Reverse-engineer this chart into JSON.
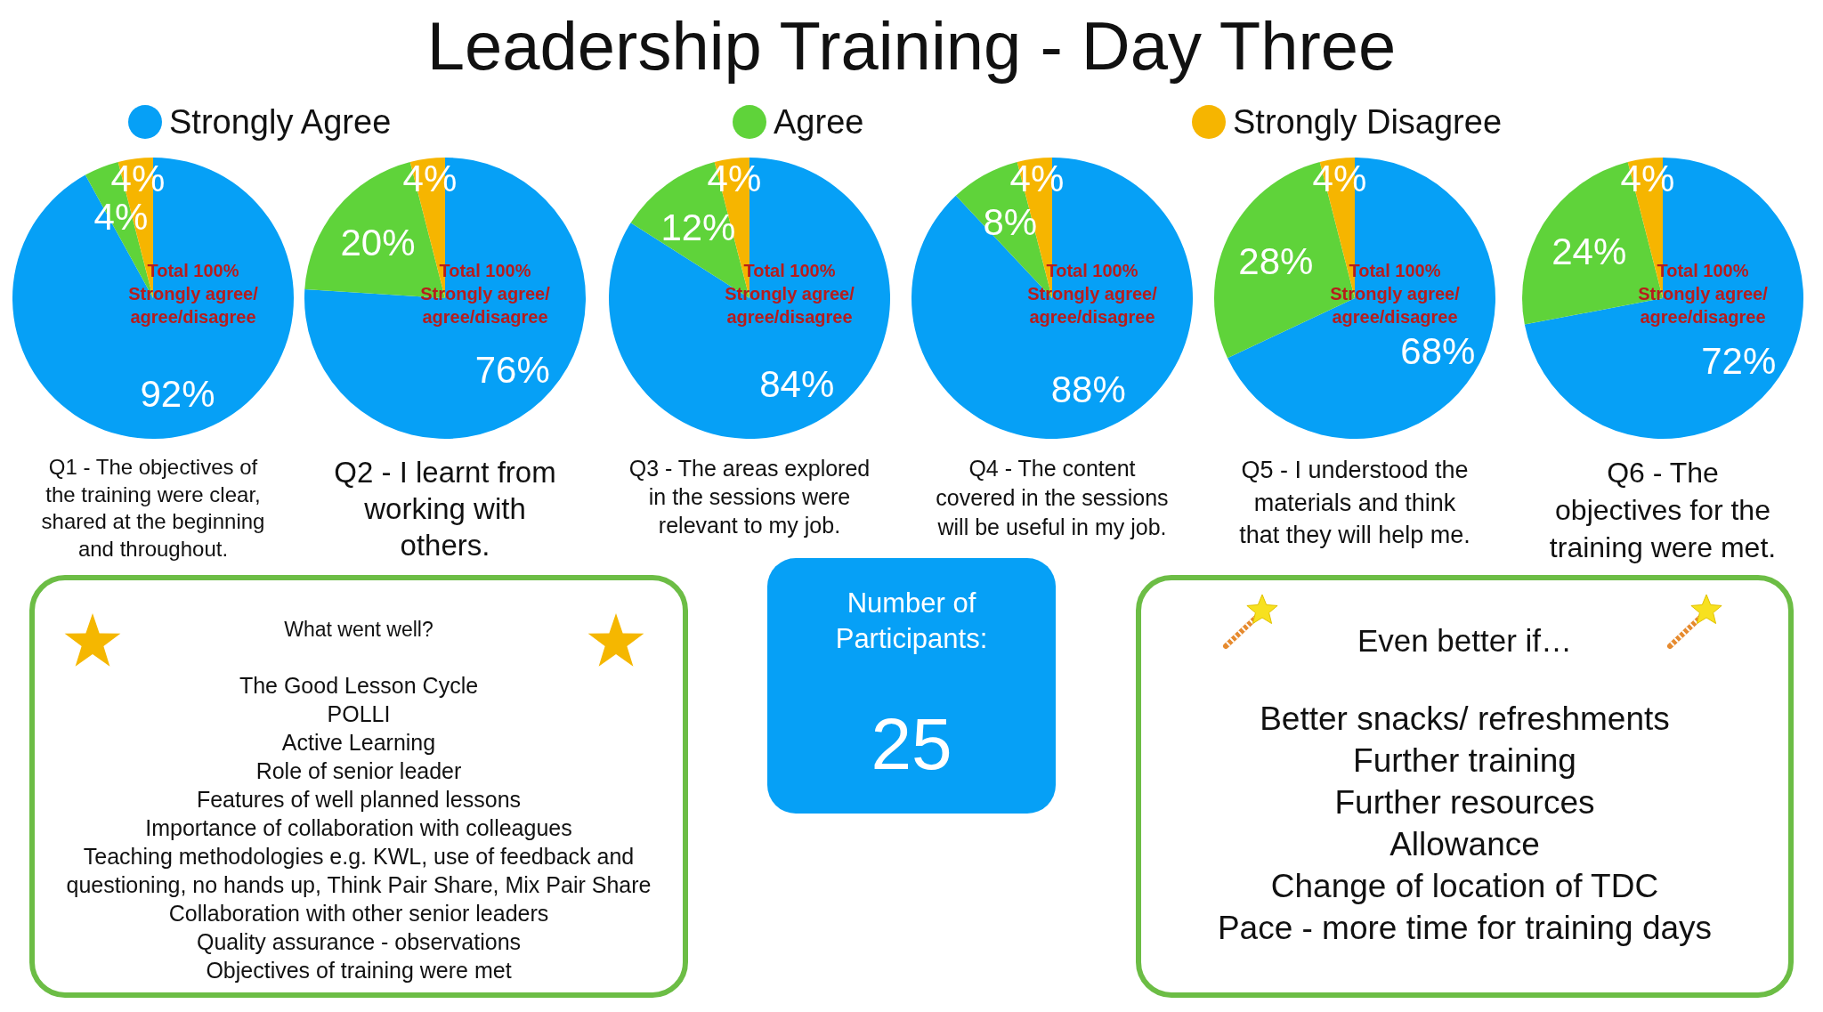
{
  "chart_data": [
    {
      "type": "other",
      "title": "Leadership Training - Day Three"
    },
    {
      "type": "pie",
      "title": "Q1 - The objectives of\nthe training were clear,\nshared at the beginning\nand throughout.",
      "categories": [
        "Strongly Agree",
        "Agree",
        "Strongly Disagree"
      ],
      "values": [
        92,
        4,
        4
      ],
      "colors": [
        "#06a0f6",
        "#5fd33a",
        "#f6b500"
      ],
      "value_labels": [
        "92%",
        "4%",
        "4%"
      ],
      "annotations": [
        "Total 100%\nStrongly agree/\nagree/disagree"
      ],
      "legend": "top"
    },
    {
      "type": "pie",
      "title": "Q2 - I learnt from\nworking with\nothers.",
      "values": [
        76,
        20,
        4
      ],
      "colors": [
        "#06a0f6",
        "#5fd33a",
        "#f6b500"
      ],
      "value_labels": [
        "76%",
        "20%",
        "4%"
      ],
      "annotations": [
        "Total 100%\nStrongly agree/\nagree/disagree"
      ]
    },
    {
      "type": "pie",
      "title": "Q3 - The areas explored\nin the sessions were\nrelevant to my job.",
      "values": [
        84,
        12,
        4
      ],
      "colors": [
        "#06a0f6",
        "#5fd33a",
        "#f6b500"
      ],
      "value_labels": [
        "84%",
        "12%",
        "4%"
      ],
      "annotations": [
        "Total 100%\nStrongly agree/\nagree/disagree"
      ]
    },
    {
      "type": "pie",
      "title": "Q4 - The content\ncovered in the sessions\nwill be useful in my job.",
      "values": [
        88,
        8,
        4
      ],
      "colors": [
        "#06a0f6",
        "#5fd33a",
        "#f6b500"
      ],
      "value_labels": [
        "88%",
        "8%",
        "4%"
      ],
      "annotations": [
        "Total 100%\nStrongly agree/\nagree/disagree"
      ]
    },
    {
      "type": "pie",
      "title": "Q5 - I understood the\nmaterials and think\nthat they will help me.",
      "values": [
        68,
        28,
        4
      ],
      "colors": [
        "#06a0f6",
        "#5fd33a",
        "#f6b500"
      ],
      "value_labels": [
        "68%",
        "28%",
        "4%"
      ],
      "annotations": [
        "Total 100%\nStrongly agree/\nagree/disagree"
      ]
    },
    {
      "type": "pie",
      "title": "Q6 - The\nobjectives for the\ntraining were met.",
      "values": [
        72,
        24,
        4
      ],
      "colors": [
        "#06a0f6",
        "#5fd33a",
        "#f6b500"
      ],
      "value_labels": [
        "72%",
        "24%",
        "4%"
      ],
      "annotations": [
        "Total 100%\nStrongly agree/\nagree/disagree"
      ]
    },
    {
      "type": "other",
      "title": "What went well?",
      "annotations": [
        "The Good Lesson Cycle",
        "POLLI",
        "Active Learning",
        "Role of senior leader",
        "Features of well planned lessons",
        "Importance of collaboration with colleagues",
        "Teaching methodologies e.g. KWL, use of feedback and\nquestioning, no hands up, Think Pair Share, Mix Pair Share",
        "Collaboration with other senior leaders",
        "Quality assurance - observations",
        "Objectives of training were met"
      ]
    },
    {
      "type": "other",
      "title": "Number of\nParticipants:",
      "annotations": [
        "25"
      ]
    },
    {
      "type": "other",
      "title": "Even better if…",
      "annotations": [
        "Better snacks/ refreshments",
        "Further training",
        "Further resources",
        "Allowance",
        "Change of location of TDC",
        "Pace - more time for training days"
      ]
    }
  ]
}
